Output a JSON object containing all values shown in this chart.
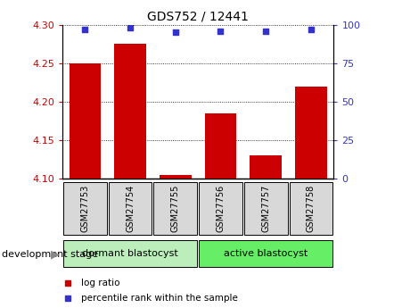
{
  "title": "GDS752 / 12441",
  "samples": [
    "GSM27753",
    "GSM27754",
    "GSM27755",
    "GSM27756",
    "GSM27757",
    "GSM27758"
  ],
  "log_ratio": [
    4.25,
    4.275,
    4.105,
    4.185,
    4.13,
    4.22
  ],
  "percentile_rank": [
    97,
    98,
    95,
    96,
    96,
    97
  ],
  "bar_color": "#cc0000",
  "dot_color": "#3333cc",
  "ylim_left": [
    4.1,
    4.3
  ],
  "ylim_right": [
    0,
    100
  ],
  "yticks_left": [
    4.1,
    4.15,
    4.2,
    4.25,
    4.3
  ],
  "yticks_right": [
    0,
    25,
    50,
    75,
    100
  ],
  "groups": [
    {
      "label": "dormant blastocyst",
      "start": 0,
      "end": 2,
      "color": "#bbeebb"
    },
    {
      "label": "active blastocyst",
      "start": 3,
      "end": 5,
      "color": "#66ee66"
    }
  ],
  "group_label_prefix": "development stage",
  "legend_entries": [
    {
      "label": "log ratio",
      "color": "#cc0000"
    },
    {
      "label": "percentile rank within the sample",
      "color": "#3333cc"
    }
  ],
  "bar_baseline": 4.1,
  "bar_width": 0.7,
  "sample_box_color": "#d8d8d8",
  "plot_bg": "#ffffff"
}
